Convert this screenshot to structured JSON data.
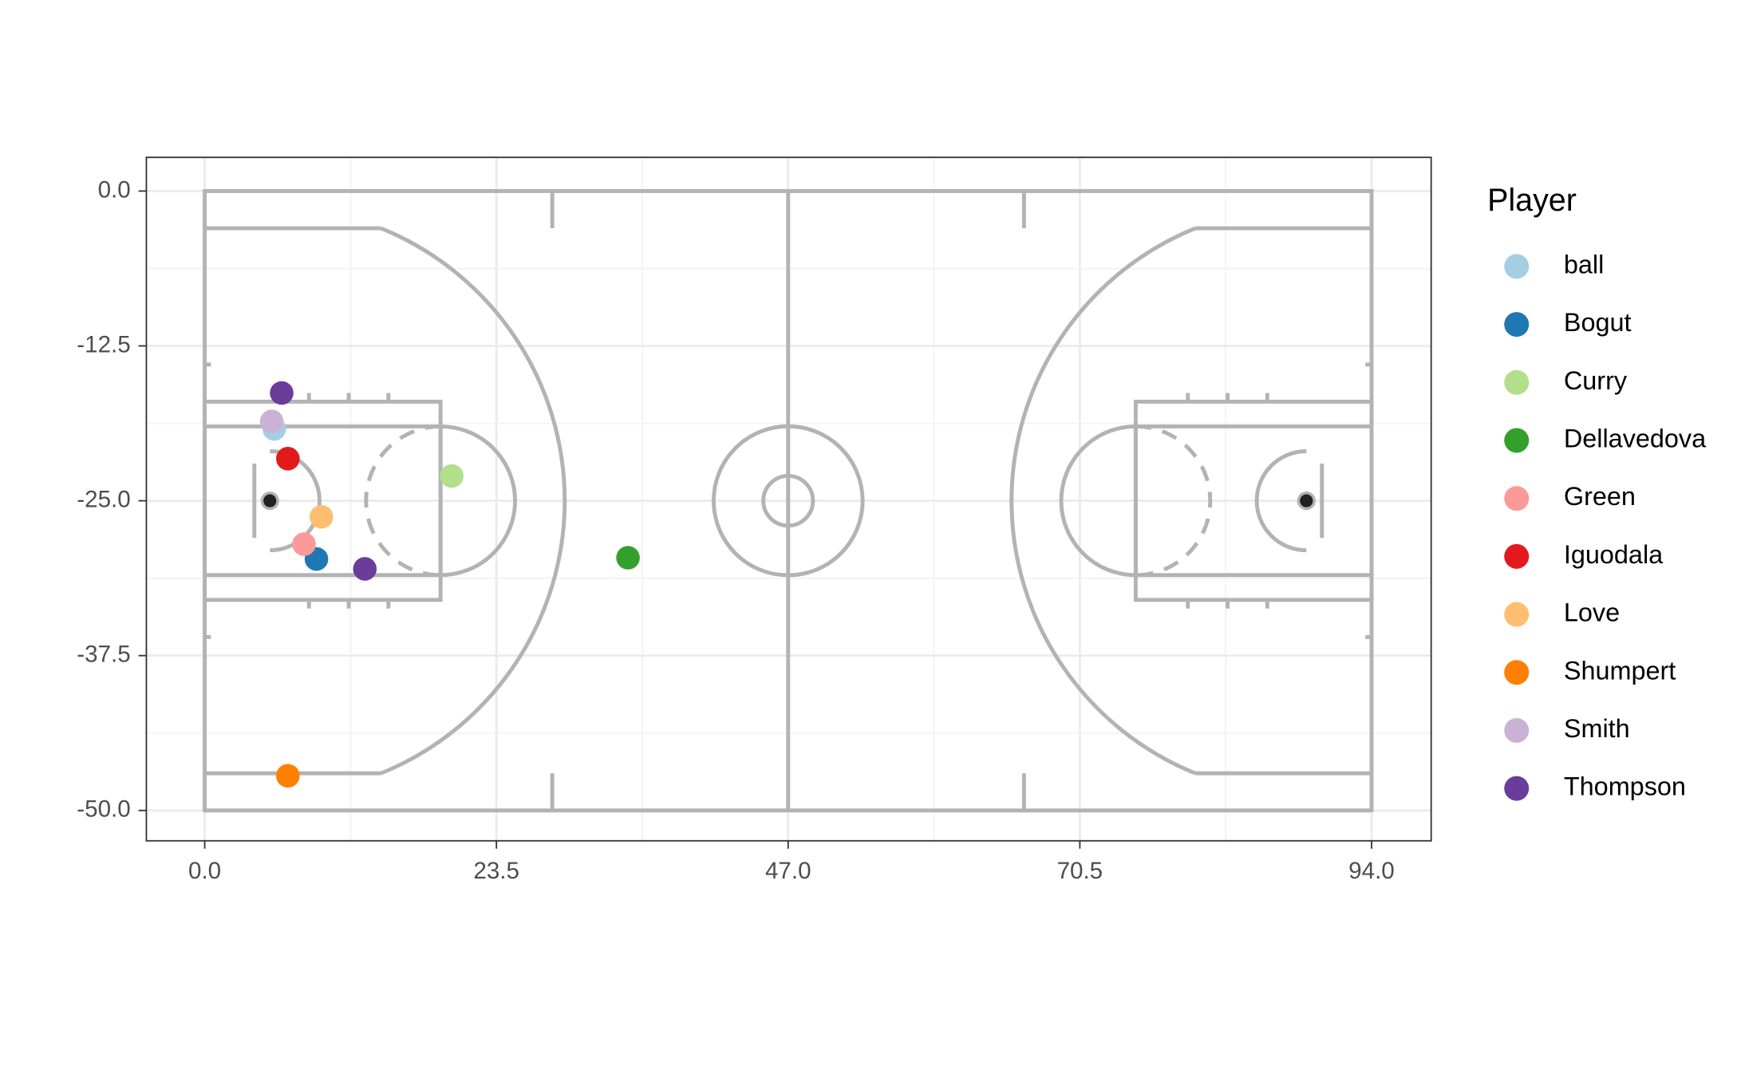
{
  "chart_data": {
    "type": "scatter",
    "legend_title": "Player",
    "xlim": [
      -4.7,
      98.8
    ],
    "ylim": [
      -52.45,
      2.72
    ],
    "xticks": [
      {
        "value": 0,
        "label": "0.0"
      },
      23.5,
      {
        "value": 47,
        "label": "47.0"
      },
      70.5,
      {
        "value": 94,
        "label": "94.0"
      }
    ],
    "yticks": [
      {
        "value": 0,
        "label": "0.0"
      },
      -12.5,
      {
        "value": -25,
        "label": "-25.0"
      },
      -37.5,
      {
        "value": -50,
        "label": "-50.0"
      }
    ],
    "grid": true,
    "legend": "right",
    "series": [
      {
        "name": "ball",
        "color": "#a6cee3",
        "x": [
          5.6
        ],
        "y": [
          -19.2
        ]
      },
      {
        "name": "Bogut",
        "color": "#1f78b4",
        "x": [
          9.0
        ],
        "y": [
          -29.7
        ]
      },
      {
        "name": "Curry",
        "color": "#b2df8a",
        "x": [
          19.9
        ],
        "y": [
          -23.0
        ]
      },
      {
        "name": "Dellavedova",
        "color": "#33a02c",
        "x": [
          34.1
        ],
        "y": [
          -29.6
        ]
      },
      {
        "name": "Green",
        "color": "#fb9a99",
        "x": [
          8.0
        ],
        "y": [
          -28.5
        ]
      },
      {
        "name": "Iguodala",
        "color": "#e31a1c",
        "x": [
          6.7
        ],
        "y": [
          -21.6
        ]
      },
      {
        "name": "Love",
        "color": "#fdbf6f",
        "x": [
          9.4
        ],
        "y": [
          -26.3
        ]
      },
      {
        "name": "Shumpert",
        "color": "#ff7f00",
        "x": [
          6.7
        ],
        "y": [
          -47.2
        ]
      },
      {
        "name": "Smith",
        "color": "#cab2d6",
        "x": [
          5.4
        ],
        "y": [
          -18.6
        ]
      },
      {
        "name": "Thompson",
        "color": "#6a3d9a",
        "x": [
          6.2,
          12.9
        ],
        "y": [
          -16.3,
          -30.5
        ]
      }
    ]
  }
}
